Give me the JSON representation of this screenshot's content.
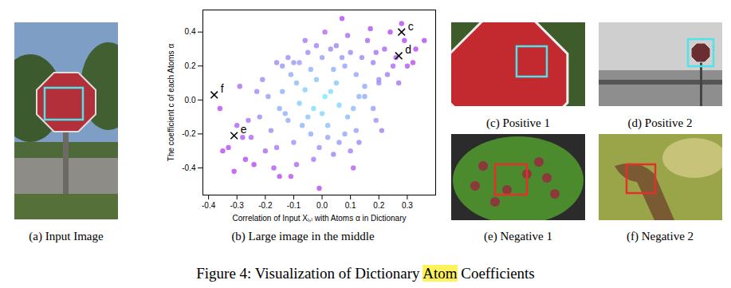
{
  "chart_data": {
    "type": "scatter",
    "xlabel": "Correlation of Input Xᵢ,ₗ with Atoms α in Dictionary",
    "ylabel": "The coefficient c of each Atoms α",
    "xlim": [
      -0.42,
      0.4
    ],
    "ylim": [
      -0.56,
      0.53
    ],
    "xticks": [
      -0.4,
      -0.3,
      -0.2,
      -0.1,
      {
        "value": 0,
        "label": "0.0"
      },
      0.1,
      0.2,
      0.3
    ],
    "yticks": [
      -0.4,
      -0.2,
      {
        "value": 0,
        "label": "0.0"
      },
      0.2,
      0.4
    ],
    "marker": "circle",
    "x": [
      0.01,
      -0.03,
      0.05,
      -0.08,
      0.12,
      -0.12,
      0.0,
      0.03,
      -0.05,
      0.08,
      -0.15,
      0.15,
      0.02,
      -0.02,
      0.1,
      -0.1,
      0.06,
      -0.06,
      0.18,
      -0.18,
      0.04,
      -0.04,
      0.13,
      -0.13,
      0.09,
      -0.09,
      0.2,
      -0.2,
      0.07,
      -0.07,
      0.22,
      -0.22,
      0.16,
      -0.16,
      0.11,
      -0.11,
      0.25,
      -0.25,
      0.14,
      -0.14,
      0.0,
      0.02,
      -0.01,
      0.05,
      -0.04,
      0.19,
      -0.19,
      0.28,
      -0.27,
      0.3,
      -0.3,
      0.33,
      -0.33,
      0.36,
      -0.35,
      0.24,
      -0.24,
      0.17,
      -0.17,
      0.21,
      -0.21,
      0.08,
      -0.08,
      0.12,
      -0.12,
      0.03,
      -0.03,
      0.27,
      -0.28,
      0.1,
      -0.1,
      0.15,
      -0.15,
      0.06,
      -0.06,
      0.19,
      -0.23,
      0.26,
      -0.26,
      0.01,
      0.13,
      -0.02,
      0.09,
      -0.09,
      0.04,
      -0.14,
      0.23,
      -0.11,
      0.18,
      -0.05,
      0.32,
      -0.31,
      0.29,
      -0.36,
      0.07,
      -0.01,
      0.11,
      -0.16,
      0.2,
      -0.29
    ],
    "values": [
      0.02,
      -0.05,
      0.1,
      -0.02,
      0.15,
      -0.12,
      -0.08,
      0.05,
      -0.1,
      0.2,
      -0.05,
      0.08,
      -0.15,
      0.12,
      0.28,
      -0.25,
      -0.03,
      0.06,
      0.22,
      -0.18,
      0.18,
      -0.2,
      0.02,
      -0.08,
      -0.1,
      0.1,
      0.12,
      -0.3,
      0.25,
      -0.15,
      0.3,
      -0.1,
      0.35,
      -0.28,
      -0.05,
      0.15,
      0.2,
      -0.22,
      0.25,
      0.05,
      0.25,
      -0.22,
      -0.28,
      0.32,
      0.18,
      -0.12,
      0.02,
      0.45,
      -0.35,
      0.2,
      -0.15,
      0.3,
      -0.28,
      0.35,
      -0.3,
      0.4,
      -0.38,
      0.42,
      -0.4,
      -0.18,
      0.12,
      -0.2,
      0.22,
      -0.18,
      0.25,
      0.3,
      -0.35,
      0.1,
      -0.22,
      -0.3,
      0.22,
      0.02,
      -0.45,
      -0.25,
      0.35,
      0.28,
      0.05,
      0.25,
      -0.12,
      0.4,
      -0.25,
      0.32,
      0.38,
      -0.38,
      -0.32,
      0.2,
      0.15,
      -0.45,
      -0.05,
      0.28,
      0.22,
      -0.42,
      0.35,
      -0.05,
      0.48,
      -0.52,
      -0.4,
      0.22,
      0.1,
      0.08
    ],
    "annotations": [
      {
        "text": "c",
        "x": 0.28,
        "y": 0.4,
        "marker": "x"
      },
      {
        "text": "d",
        "x": 0.27,
        "y": 0.26,
        "marker": "x"
      },
      {
        "text": "e",
        "x": -0.31,
        "y": -0.21,
        "marker": "x"
      },
      {
        "text": "f",
        "x": -0.38,
        "y": 0.03,
        "marker": "x"
      }
    ]
  },
  "panels": [
    {
      "id": "a",
      "caption": "(a) Input Image",
      "box_color": "#4fe3ea"
    },
    {
      "id": "b",
      "caption": "(b) Large image in the middle"
    },
    {
      "id": "c",
      "caption": "(c) Positive 1",
      "box_color": "#4fe3ea"
    },
    {
      "id": "d",
      "caption": "(d) Positive 2",
      "box_color": "#4fe3ea"
    },
    {
      "id": "e",
      "caption": "(e) Negative 1",
      "box_color": "#e3302a"
    },
    {
      "id": "f",
      "caption": "(f) Negative 2",
      "box_color": "#e3302a"
    }
  ],
  "caption": {
    "text": "Figure 4: Visualization of Dictionary Atom Coefficients",
    "highlight": "Atom"
  }
}
